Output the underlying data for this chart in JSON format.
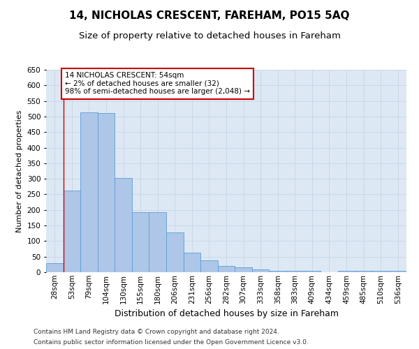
{
  "title": "14, NICHOLAS CRESCENT, FAREHAM, PO15 5AQ",
  "subtitle": "Size of property relative to detached houses in Fareham",
  "xlabel": "Distribution of detached houses by size in Fareham",
  "ylabel": "Number of detached properties",
  "categories": [
    "28sqm",
    "53sqm",
    "79sqm",
    "104sqm",
    "130sqm",
    "155sqm",
    "180sqm",
    "206sqm",
    "231sqm",
    "256sqm",
    "282sqm",
    "307sqm",
    "333sqm",
    "358sqm",
    "383sqm",
    "409sqm",
    "434sqm",
    "459sqm",
    "485sqm",
    "510sqm",
    "536sqm"
  ],
  "values": [
    30,
    263,
    513,
    511,
    302,
    193,
    193,
    128,
    63,
    38,
    21,
    15,
    9,
    5,
    5,
    5,
    0,
    5,
    5,
    5,
    5
  ],
  "bar_color": "#aec6e8",
  "bar_edge_color": "#5a9fd4",
  "highlight_color": "#cc0000",
  "annotation_text": "14 NICHOLAS CRESCENT: 54sqm\n← 2% of detached houses are smaller (32)\n98% of semi-detached houses are larger (2,048) →",
  "annotation_box_color": "#ffffff",
  "annotation_border_color": "#cc0000",
  "ylim": [
    0,
    650
  ],
  "yticks": [
    0,
    50,
    100,
    150,
    200,
    250,
    300,
    350,
    400,
    450,
    500,
    550,
    600,
    650
  ],
  "grid_color": "#c8d8e8",
  "background_color": "#dde8f4",
  "footer1": "Contains HM Land Registry data © Crown copyright and database right 2024.",
  "footer2": "Contains public sector information licensed under the Open Government Licence v3.0.",
  "title_fontsize": 11,
  "subtitle_fontsize": 9.5,
  "xlabel_fontsize": 9,
  "ylabel_fontsize": 8,
  "tick_fontsize": 7.5,
  "annotation_fontsize": 7.5,
  "footer_fontsize": 6.5
}
